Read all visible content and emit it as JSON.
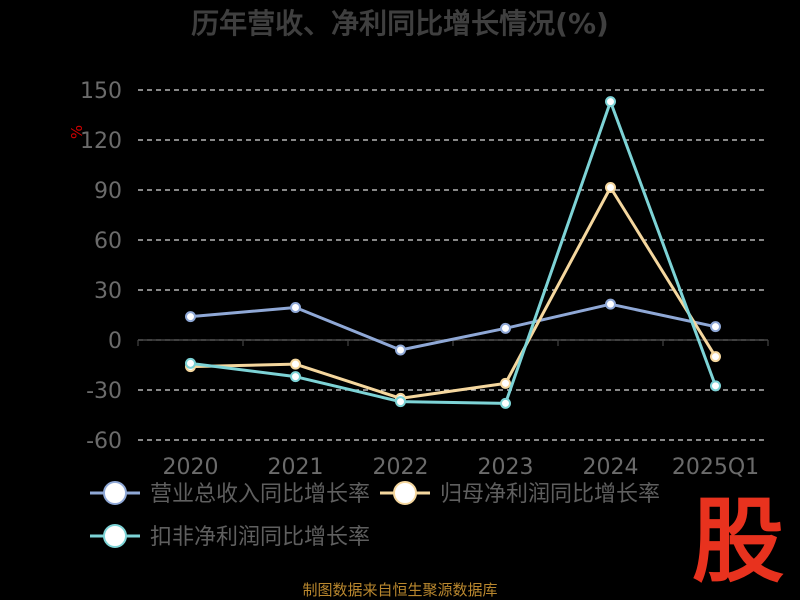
{
  "chart_data": {
    "type": "line",
    "title": "历年营收、净利同比增长情况(%)",
    "ylabel": "%",
    "categories": [
      "2020",
      "2021",
      "2022",
      "2023",
      "2024",
      "2025Q1"
    ],
    "ylim": [
      -60,
      150
    ],
    "yticks": [
      "150",
      "120",
      "90",
      "60",
      "30",
      "0",
      "-30",
      "-60"
    ],
    "grid": true,
    "legend_position": "bottom",
    "series": [
      {
        "name": "营业总收入同比增长率",
        "color": "#8fa8d6",
        "values": [
          14,
          19.5,
          -6,
          7,
          21.5,
          8
        ]
      },
      {
        "name": "归母净利润同比增长率",
        "color": "#f5d79e",
        "values": [
          -16,
          -14.5,
          -35,
          -26,
          91.5,
          -10
        ]
      },
      {
        "name": "扣非净利润同比增长率",
        "color": "#7dd3d6",
        "values": [
          -14,
          -22,
          -37,
          -38,
          143,
          -27.5
        ]
      }
    ]
  },
  "source_text": "制图数据来自恒生聚源数据库",
  "watermark_text": "股"
}
